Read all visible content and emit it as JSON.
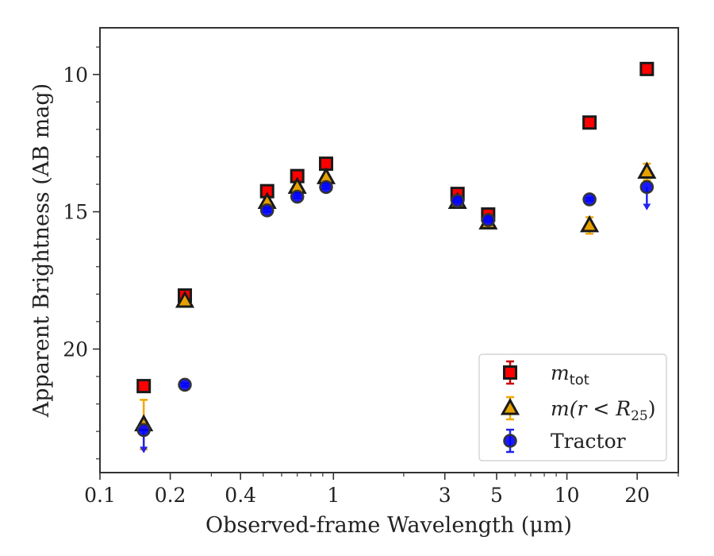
{
  "chart_data": {
    "type": "scatter",
    "xlabel": "Observed-frame Wavelength (μm)",
    "ylabel": "Apparent Brightness (AB mag)",
    "xscale": "log",
    "xlim": [
      0.1,
      30
    ],
    "ylim": [
      24.5,
      8.3
    ],
    "y_inverted": true,
    "x_ticks": [
      0.1,
      0.2,
      0.4,
      1,
      3,
      5,
      10,
      20
    ],
    "x_tick_labels": [
      "0.1",
      "0.2",
      "0.4",
      "1",
      "3",
      "5",
      "10",
      "20"
    ],
    "y_ticks": [
      10,
      15,
      20
    ],
    "y_tick_labels": [
      "10",
      "15",
      "20"
    ],
    "grid": false,
    "legend_position": "lower-right",
    "series": [
      {
        "key": "mtot",
        "legend": {
          "base": "m",
          "sub": "tot",
          "suffix": ""
        },
        "marker": "square",
        "color": "#ff0000",
        "edge_color": "#1a1a1a",
        "error_color": "#cc0000",
        "x": [
          0.154,
          0.231,
          0.52,
          0.7,
          0.93,
          3.4,
          4.6,
          12.5,
          22.0
        ],
        "y": [
          21.35,
          18.05,
          14.25,
          13.7,
          13.25,
          14.35,
          15.1,
          11.75,
          9.8
        ],
        "yerr": [
          0.05,
          0.05,
          0.05,
          0.05,
          0.05,
          0.05,
          0.05,
          0.05,
          0.05
        ],
        "upper_limit": [
          false,
          false,
          false,
          false,
          false,
          false,
          false,
          false,
          false
        ]
      },
      {
        "key": "m25",
        "legend": {
          "base": "m",
          "sub": "",
          "suffix": "(r < R",
          "sub2": "25",
          "close": ")"
        },
        "marker": "triangle",
        "color": "#e6a000",
        "edge_color": "#1a1a1a",
        "error_color": "#f0a800",
        "x": [
          0.154,
          0.231,
          0.52,
          0.7,
          0.93,
          3.4,
          4.6,
          12.5,
          22.0
        ],
        "y": [
          22.75,
          18.25,
          14.65,
          14.1,
          13.75,
          14.65,
          15.4,
          15.5,
          13.55
        ],
        "yerr": [
          0.9,
          0.05,
          0.05,
          0.05,
          0.05,
          0.05,
          0.05,
          0.3,
          0.3
        ],
        "upper_limit": [
          false,
          false,
          false,
          false,
          false,
          false,
          false,
          false,
          false
        ]
      },
      {
        "key": "tractor",
        "legend": {
          "base": "Tractor"
        },
        "marker": "circle",
        "color": "#0000ff",
        "edge_color": "#333333",
        "error_color": "#2222ee",
        "x": [
          0.154,
          0.231,
          0.52,
          0.7,
          0.93,
          3.4,
          4.6,
          12.5,
          22.0
        ],
        "y": [
          22.95,
          21.3,
          14.95,
          14.45,
          14.1,
          14.6,
          15.3,
          14.55,
          14.1
        ],
        "yerr": [
          0.05,
          0.05,
          0.05,
          0.05,
          0.05,
          0.05,
          0.05,
          0.05,
          0.05
        ],
        "upper_limit": [
          true,
          false,
          false,
          false,
          false,
          false,
          false,
          false,
          true
        ]
      }
    ]
  }
}
